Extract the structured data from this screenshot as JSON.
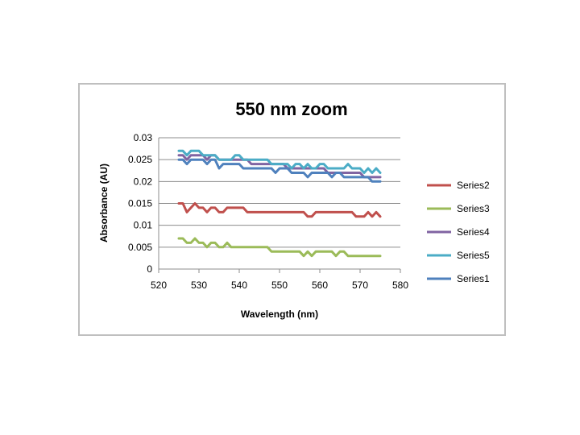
{
  "chart_data": {
    "type": "line",
    "title": "550 nm zoom",
    "xlabel": "Wavelength (nm)",
    "ylabel": "Absorbance (AU)",
    "xlim": [
      520,
      580
    ],
    "ylim": [
      0,
      0.03
    ],
    "x_ticks": [
      "520",
      "530",
      "540",
      "550",
      "560",
      "570",
      "580"
    ],
    "y_ticks": [
      "0",
      "0.005",
      "0.01",
      "0.015",
      "0.02",
      "0.025",
      "0.03"
    ],
    "grid": "horizontal",
    "legend_position": "right",
    "legend_order": [
      "Series2",
      "Series3",
      "Series4",
      "Series5",
      "Series1"
    ],
    "x": [
      525,
      526,
      527,
      528,
      529,
      530,
      531,
      532,
      533,
      534,
      535,
      536,
      537,
      538,
      539,
      540,
      541,
      542,
      543,
      544,
      545,
      546,
      547,
      548,
      549,
      550,
      551,
      552,
      553,
      554,
      555,
      556,
      557,
      558,
      559,
      560,
      561,
      562,
      563,
      564,
      565,
      566,
      567,
      568,
      569,
      570,
      571,
      572,
      573,
      574,
      575
    ],
    "series": [
      {
        "name": "Series2",
        "color": "#c0504d",
        "values": [
          0.015,
          0.015,
          0.013,
          0.014,
          0.015,
          0.014,
          0.014,
          0.013,
          0.014,
          0.014,
          0.013,
          0.013,
          0.014,
          0.014,
          0.014,
          0.014,
          0.014,
          0.013,
          0.013,
          0.013,
          0.013,
          0.013,
          0.013,
          0.013,
          0.013,
          0.013,
          0.013,
          0.013,
          0.013,
          0.013,
          0.013,
          0.013,
          0.012,
          0.012,
          0.013,
          0.013,
          0.013,
          0.013,
          0.013,
          0.013,
          0.013,
          0.013,
          0.013,
          0.013,
          0.012,
          0.012,
          0.012,
          0.013,
          0.012,
          0.013,
          0.012
        ]
      },
      {
        "name": "Series3",
        "color": "#9bbb59",
        "values": [
          0.007,
          0.007,
          0.006,
          0.006,
          0.007,
          0.006,
          0.006,
          0.005,
          0.006,
          0.006,
          0.005,
          0.005,
          0.006,
          0.005,
          0.005,
          0.005,
          0.005,
          0.005,
          0.005,
          0.005,
          0.005,
          0.005,
          0.005,
          0.004,
          0.004,
          0.004,
          0.004,
          0.004,
          0.004,
          0.004,
          0.004,
          0.003,
          0.004,
          0.003,
          0.004,
          0.004,
          0.004,
          0.004,
          0.004,
          0.003,
          0.004,
          0.004,
          0.003,
          0.003,
          0.003,
          0.003,
          0.003,
          0.003,
          0.003,
          0.003,
          0.003
        ]
      },
      {
        "name": "Series4",
        "color": "#8064a2",
        "values": [
          0.026,
          0.026,
          0.025,
          0.026,
          0.026,
          0.026,
          0.026,
          0.025,
          0.026,
          0.026,
          0.025,
          0.025,
          0.025,
          0.025,
          0.025,
          0.025,
          0.025,
          0.025,
          0.024,
          0.024,
          0.024,
          0.024,
          0.024,
          0.024,
          0.024,
          0.024,
          0.024,
          0.023,
          0.023,
          0.023,
          0.023,
          0.023,
          0.023,
          0.023,
          0.023,
          0.023,
          0.023,
          0.022,
          0.022,
          0.022,
          0.022,
          0.022,
          0.022,
          0.022,
          0.022,
          0.022,
          0.021,
          0.021,
          0.021,
          0.021,
          0.021
        ]
      },
      {
        "name": "Series5",
        "color": "#4bacc6",
        "values": [
          0.027,
          0.027,
          0.026,
          0.027,
          0.027,
          0.027,
          0.026,
          0.026,
          0.026,
          0.026,
          0.025,
          0.025,
          0.025,
          0.025,
          0.026,
          0.026,
          0.025,
          0.025,
          0.025,
          0.025,
          0.025,
          0.025,
          0.025,
          0.024,
          0.024,
          0.024,
          0.024,
          0.024,
          0.023,
          0.024,
          0.024,
          0.023,
          0.024,
          0.023,
          0.023,
          0.024,
          0.024,
          0.023,
          0.023,
          0.023,
          0.023,
          0.023,
          0.024,
          0.023,
          0.023,
          0.023,
          0.022,
          0.023,
          0.022,
          0.023,
          0.022
        ]
      },
      {
        "name": "Series1",
        "color": "#4f81bd",
        "values": [
          0.025,
          0.025,
          0.024,
          0.025,
          0.025,
          0.025,
          0.025,
          0.024,
          0.025,
          0.025,
          0.023,
          0.024,
          0.024,
          0.024,
          0.024,
          0.024,
          0.023,
          0.023,
          0.023,
          0.023,
          0.023,
          0.023,
          0.023,
          0.023,
          0.022,
          0.023,
          0.023,
          0.023,
          0.022,
          0.022,
          0.022,
          0.022,
          0.021,
          0.022,
          0.022,
          0.022,
          0.022,
          0.022,
          0.021,
          0.022,
          0.022,
          0.021,
          0.021,
          0.021,
          0.021,
          0.021,
          0.021,
          0.021,
          0.02,
          0.02,
          0.02
        ]
      }
    ]
  }
}
